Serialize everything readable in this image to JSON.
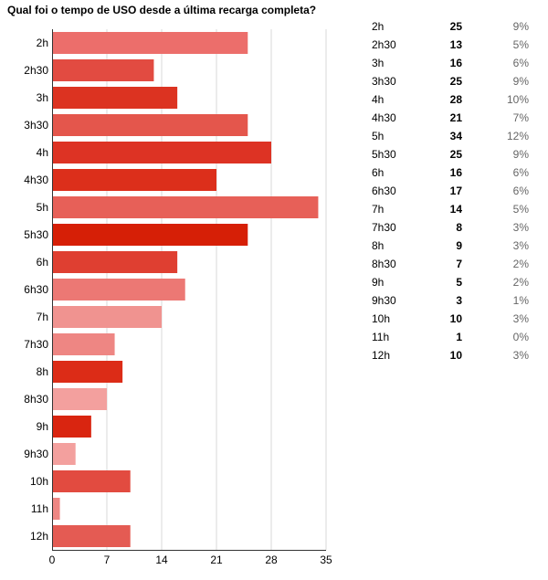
{
  "title": "Qual foi o tempo de USO desde a última recarga completa?",
  "chart_data": {
    "type": "bar",
    "orientation": "horizontal",
    "title": "Qual foi o tempo de USO desde a última recarga completa?",
    "categories": [
      "2h",
      "2h30",
      "3h",
      "3h30",
      "4h",
      "4h30",
      "5h",
      "5h30",
      "6h",
      "6h30",
      "7h",
      "7h30",
      "8h",
      "8h30",
      "9h",
      "9h30",
      "10h",
      "11h",
      "12h"
    ],
    "values": [
      25,
      13,
      16,
      25,
      28,
      21,
      34,
      25,
      16,
      17,
      14,
      8,
      9,
      7,
      5,
      3,
      10,
      1,
      10
    ],
    "percentages": [
      "9%",
      "5%",
      "6%",
      "9%",
      "10%",
      "7%",
      "12%",
      "9%",
      "6%",
      "6%",
      "5%",
      "3%",
      "3%",
      "2%",
      "2%",
      "1%",
      "3%",
      "0%",
      "3%"
    ],
    "bar_colors": [
      "#ec6e6b",
      "#e24b41",
      "#dc3321",
      "#e4564c",
      "#dd3324",
      "#dc2f1b",
      "#e76058",
      "#d61f06",
      "#df3f31",
      "#ec7874",
      "#f09390",
      "#ee8683",
      "#dc2c17",
      "#f3a09e",
      "#d92510",
      "#f3a09e",
      "#e24b40",
      "#ee8683",
      "#e45b53"
    ],
    "xlim": [
      0,
      35
    ],
    "xticks": [
      0,
      7,
      14,
      21,
      28,
      35
    ],
    "grid": true
  }
}
